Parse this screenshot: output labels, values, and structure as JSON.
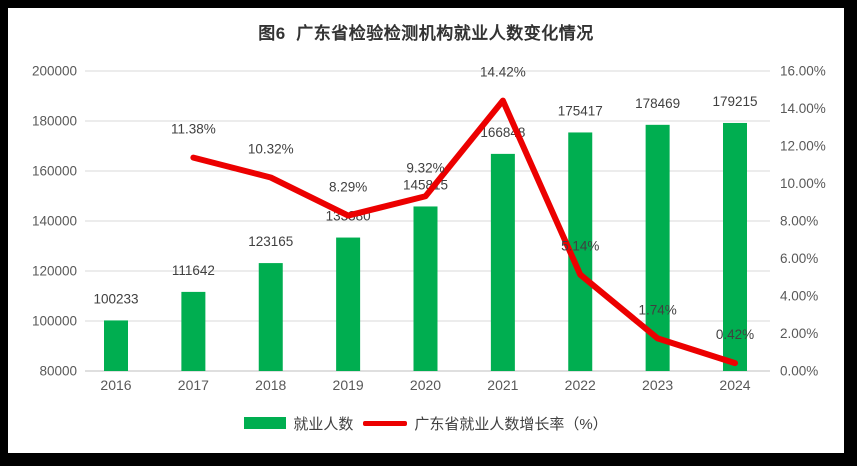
{
  "title": "图6  广东省检验检测机构就业人数变化情况",
  "colors": {
    "bar": "#00AE50",
    "line": "#EC0000",
    "grid": "#D9D9D9",
    "axis_line": "#BFBFBF",
    "tick_text": "#595959",
    "label_text": "#404040",
    "title_text": "#333333",
    "frame": "#000000",
    "background": "#FFFFFF"
  },
  "chart_data": {
    "type": "bar",
    "subtype": "bar-line-combo",
    "title": "图6  广东省检验检测机构就业人数变化情况",
    "categories": [
      "2016",
      "2017",
      "2018",
      "2019",
      "2020",
      "2021",
      "2022",
      "2023",
      "2024"
    ],
    "series": [
      {
        "name": "就业人数",
        "type": "bar",
        "axis": "left",
        "values": [
          100233,
          111642,
          123165,
          133380,
          145815,
          166848,
          175417,
          178469,
          179215
        ],
        "labels": [
          "100233",
          "111642",
          "123165",
          "133380",
          "145815",
          "166848",
          "175417",
          "178469",
          "179215"
        ]
      },
      {
        "name": "广东省就业人数增长率（%）",
        "type": "line",
        "axis": "right",
        "values": [
          null,
          11.38,
          10.32,
          8.29,
          9.32,
          14.42,
          5.14,
          1.74,
          0.42
        ],
        "labels": [
          null,
          "11.38%",
          "10.32%",
          "8.29%",
          "9.32%",
          "14.42%",
          "5.14%",
          "1.74%",
          "0.42%"
        ]
      }
    ],
    "left_axis": {
      "min": 80000,
      "max": 200000,
      "tick_step": 20000,
      "ticks": [
        "200000",
        "180000",
        "160000",
        "140000",
        "120000",
        "100000",
        "80000"
      ]
    },
    "right_axis": {
      "min": 0,
      "max": 16,
      "tick_step": 2,
      "ticks": [
        "16.00%",
        "14.00%",
        "12.00%",
        "10.00%",
        "8.00%",
        "6.00%",
        "4.00%",
        "2.00%",
        "0.00%"
      ]
    },
    "grid": "horizontal",
    "legend_position": "bottom",
    "legend": [
      {
        "label": "就业人数",
        "swatch": "bar"
      },
      {
        "label": "广东省就业人数增长率（%）",
        "swatch": "line"
      }
    ]
  }
}
